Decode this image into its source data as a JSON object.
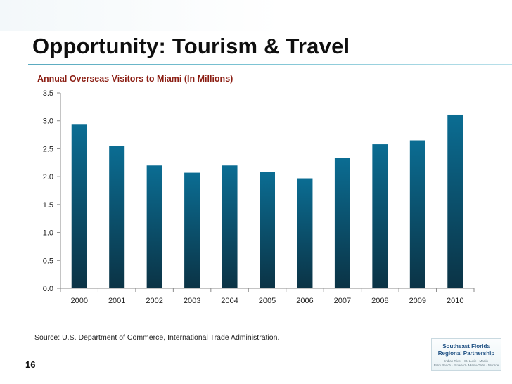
{
  "slide": {
    "title": "Opportunity: Tourism & Travel",
    "number": "16",
    "source": "Source:  U.S. Department of Commerce, International Trade Administration."
  },
  "logo": {
    "line1": "Southeast Florida",
    "line2": "Regional Partnership",
    "tag1": "Indian River · St. Lucie · Martin",
    "tag2": "Palm Beach · Broward · Miami-Dade · Monroe"
  },
  "colors": {
    "bar_top": "#0b6d93",
    "bar_bottom": "#0b3345",
    "chart_title": "#8b1d12"
  },
  "chart_data": {
    "type": "bar",
    "title": "Annual Overseas Visitors to Miami (In Millions)",
    "xlabel": "",
    "ylabel": "",
    "categories": [
      "2000",
      "2001",
      "2002",
      "2003",
      "2004",
      "2005",
      "2006",
      "2007",
      "2008",
      "2009",
      "2010"
    ],
    "values": [
      2.93,
      2.55,
      2.2,
      2.07,
      2.2,
      2.08,
      1.97,
      2.34,
      2.58,
      2.65,
      3.11
    ],
    "ylim": [
      0,
      3.5
    ],
    "yticks": [
      "0.0",
      "0.5",
      "1.0",
      "1.5",
      "2.0",
      "2.5",
      "3.0",
      "3.5"
    ],
    "ytick_values": [
      0,
      0.5,
      1.0,
      1.5,
      2.0,
      2.5,
      3.0,
      3.5
    ],
    "grid": false,
    "legend": "none"
  }
}
